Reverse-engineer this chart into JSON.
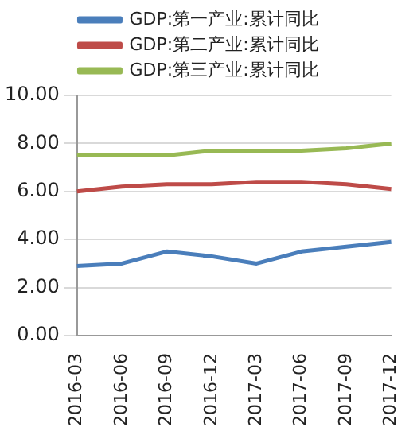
{
  "chart_data": {
    "type": "line",
    "categories": [
      "2016-03",
      "2016-06",
      "2016-09",
      "2016-12",
      "2017-03",
      "2017-06",
      "2017-09",
      "2017-12"
    ],
    "series": [
      {
        "name": "GDP:第一产业:累计同比",
        "color": "#4a7ebb",
        "values": [
          2.9,
          3.0,
          3.5,
          3.3,
          3.0,
          3.5,
          3.7,
          3.9
        ]
      },
      {
        "name": "GDP:第二产业:累计同比",
        "color": "#be4b48",
        "values": [
          6.0,
          6.2,
          6.3,
          6.3,
          6.4,
          6.4,
          6.3,
          6.1
        ]
      },
      {
        "name": "GDP:第三产业:累计同比",
        "color": "#98b954",
        "values": [
          7.5,
          7.5,
          7.5,
          7.7,
          7.7,
          7.7,
          7.8,
          8.0
        ]
      }
    ],
    "ylim": [
      0,
      10
    ],
    "yticks": [
      {
        "value": 0,
        "label": "0.00"
      },
      {
        "value": 2,
        "label": "2.00"
      },
      {
        "value": 4,
        "label": "4.00"
      },
      {
        "value": 6,
        "label": "6.00"
      },
      {
        "value": 8,
        "label": "8.00"
      },
      {
        "value": 10,
        "label": "10.00"
      }
    ],
    "grid": "y",
    "legend": "top",
    "marker": "none",
    "line_style": "solid"
  }
}
